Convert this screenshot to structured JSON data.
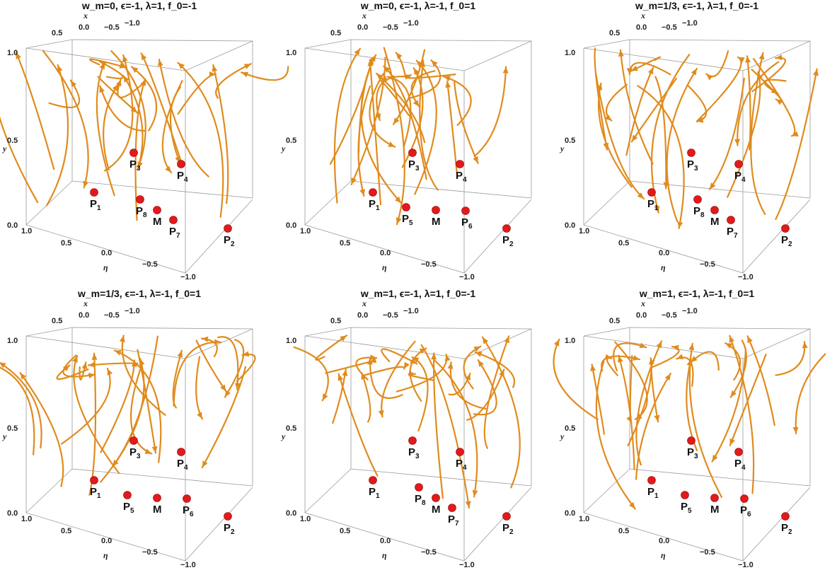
{
  "figure": {
    "colors": {
      "stream": "#e08b1d",
      "point": "#e31a1c",
      "box": "#9a9a9a"
    }
  },
  "chart_data": [
    {
      "type": "3d-streamplot",
      "title": "w_m=0, ϵ=-1, λ=1, f_0=-1",
      "axes": {
        "x": {
          "label": "x",
          "ticks": [
            "0.5",
            "0.0",
            "−0.5",
            "−1.0"
          ]
        },
        "y": {
          "label": "y",
          "ticks": [
            "0.0",
            "0.5",
            "1.0"
          ]
        },
        "eta": {
          "label": "η",
          "ticks": [
            "1.0",
            "0.5",
            "0.0",
            "−0.5",
            "−1.0"
          ]
        },
        "x_top_extra_tick": "1.0"
      },
      "points": [
        {
          "name": "P",
          "sub": "1"
        },
        {
          "name": "P",
          "sub": "2"
        },
        {
          "name": "P",
          "sub": "3"
        },
        {
          "name": "P",
          "sub": "4"
        },
        {
          "name": "P",
          "sub": "7"
        },
        {
          "name": "P",
          "sub": "8"
        },
        {
          "name": "M",
          "sub": ""
        }
      ]
    },
    {
      "type": "3d-streamplot",
      "title": "w_m=0, ϵ=-1, λ=-1, f_0=1",
      "axes": {
        "x": {
          "label": "x",
          "ticks": [
            "0.5",
            "0.0",
            "−0.5",
            "−1.0"
          ]
        },
        "y": {
          "label": "y",
          "ticks": [
            "0.0",
            "0.5",
            "1.0"
          ]
        },
        "eta": {
          "label": "η",
          "ticks": [
            "1.0",
            "0.5",
            "0.0",
            "−0.5",
            "−1.0"
          ]
        },
        "x_top_extra_tick": "1.0"
      },
      "points": [
        {
          "name": "P",
          "sub": "1"
        },
        {
          "name": "P",
          "sub": "2"
        },
        {
          "name": "P",
          "sub": "3"
        },
        {
          "name": "P",
          "sub": "4"
        },
        {
          "name": "P",
          "sub": "5"
        },
        {
          "name": "P",
          "sub": "6"
        },
        {
          "name": "M",
          "sub": ""
        }
      ]
    },
    {
      "type": "3d-streamplot",
      "title": "w_m=1/3, ϵ=-1, λ=1, f_0=-1",
      "axes": {
        "x": {
          "label": "x",
          "ticks": [
            "0.5",
            "0.0",
            "−0.5",
            "−1.0"
          ]
        },
        "y": {
          "label": "y",
          "ticks": [
            "0.0",
            "0.5",
            "1.0"
          ]
        },
        "eta": {
          "label": "η",
          "ticks": [
            "1.0",
            "0.5",
            "0.0",
            "−0.5",
            "−1.0"
          ]
        },
        "x_top_extra_tick": "1.0"
      },
      "points": [
        {
          "name": "P",
          "sub": "1"
        },
        {
          "name": "P",
          "sub": "2"
        },
        {
          "name": "P",
          "sub": "3"
        },
        {
          "name": "P",
          "sub": "4"
        },
        {
          "name": "P",
          "sub": "7"
        },
        {
          "name": "P",
          "sub": "8"
        },
        {
          "name": "M",
          "sub": ""
        }
      ]
    },
    {
      "type": "3d-streamplot",
      "title": "w_m=1/3, ϵ=-1, λ=-1, f_0=1",
      "axes": {
        "x": {
          "label": "x",
          "ticks": [
            "0.5",
            "0.0",
            "−0.5",
            "−1.0"
          ]
        },
        "y": {
          "label": "y",
          "ticks": [
            "0.0",
            "0.5",
            "1.0"
          ]
        },
        "eta": {
          "label": "η",
          "ticks": [
            "1.0",
            "0.5",
            "0.0",
            "−0.5",
            "−1.0"
          ]
        },
        "x_top_extra_tick": "1.0"
      },
      "points": [
        {
          "name": "P",
          "sub": "1"
        },
        {
          "name": "P",
          "sub": "2"
        },
        {
          "name": "P",
          "sub": "3"
        },
        {
          "name": "P",
          "sub": "4"
        },
        {
          "name": "P",
          "sub": "5"
        },
        {
          "name": "P",
          "sub": "6"
        },
        {
          "name": "M",
          "sub": ""
        }
      ]
    },
    {
      "type": "3d-streamplot",
      "title": "w_m=1, ϵ=-1, λ=1, f_0=-1",
      "axes": {
        "x": {
          "label": "x",
          "ticks": [
            "0.5",
            "0.0",
            "−0.5",
            "−1.0"
          ]
        },
        "y": {
          "label": "y",
          "ticks": [
            "0.0",
            "0.5",
            "1.0"
          ]
        },
        "eta": {
          "label": "η",
          "ticks": [
            "1.0",
            "0.5",
            "0.0",
            "−0.5",
            "−1.0"
          ]
        },
        "x_top_extra_tick": "1.0"
      },
      "points": [
        {
          "name": "P",
          "sub": "1"
        },
        {
          "name": "P",
          "sub": "2"
        },
        {
          "name": "P",
          "sub": "3"
        },
        {
          "name": "P",
          "sub": "4"
        },
        {
          "name": "P",
          "sub": "7"
        },
        {
          "name": "P",
          "sub": "8"
        },
        {
          "name": "M",
          "sub": ""
        }
      ]
    },
    {
      "type": "3d-streamplot",
      "title": "w_m=1, ϵ=-1, λ=-1, f_0=1",
      "axes": {
        "x": {
          "label": "x",
          "ticks": [
            "0.5",
            "0.0",
            "−0.5",
            "−1.0"
          ]
        },
        "y": {
          "label": "y",
          "ticks": [
            "0.0",
            "0.5",
            "1.0"
          ]
        },
        "eta": {
          "label": "η",
          "ticks": [
            "1.0",
            "0.5",
            "0.0",
            "−0.5",
            "−1.0"
          ]
        },
        "x_top_extra_tick": "1.0"
      },
      "points": [
        {
          "name": "P",
          "sub": "1"
        },
        {
          "name": "P",
          "sub": "2"
        },
        {
          "name": "P",
          "sub": "3"
        },
        {
          "name": "P",
          "sub": "4"
        },
        {
          "name": "P",
          "sub": "5"
        },
        {
          "name": "P",
          "sub": "6"
        },
        {
          "name": "M",
          "sub": ""
        }
      ]
    }
  ]
}
